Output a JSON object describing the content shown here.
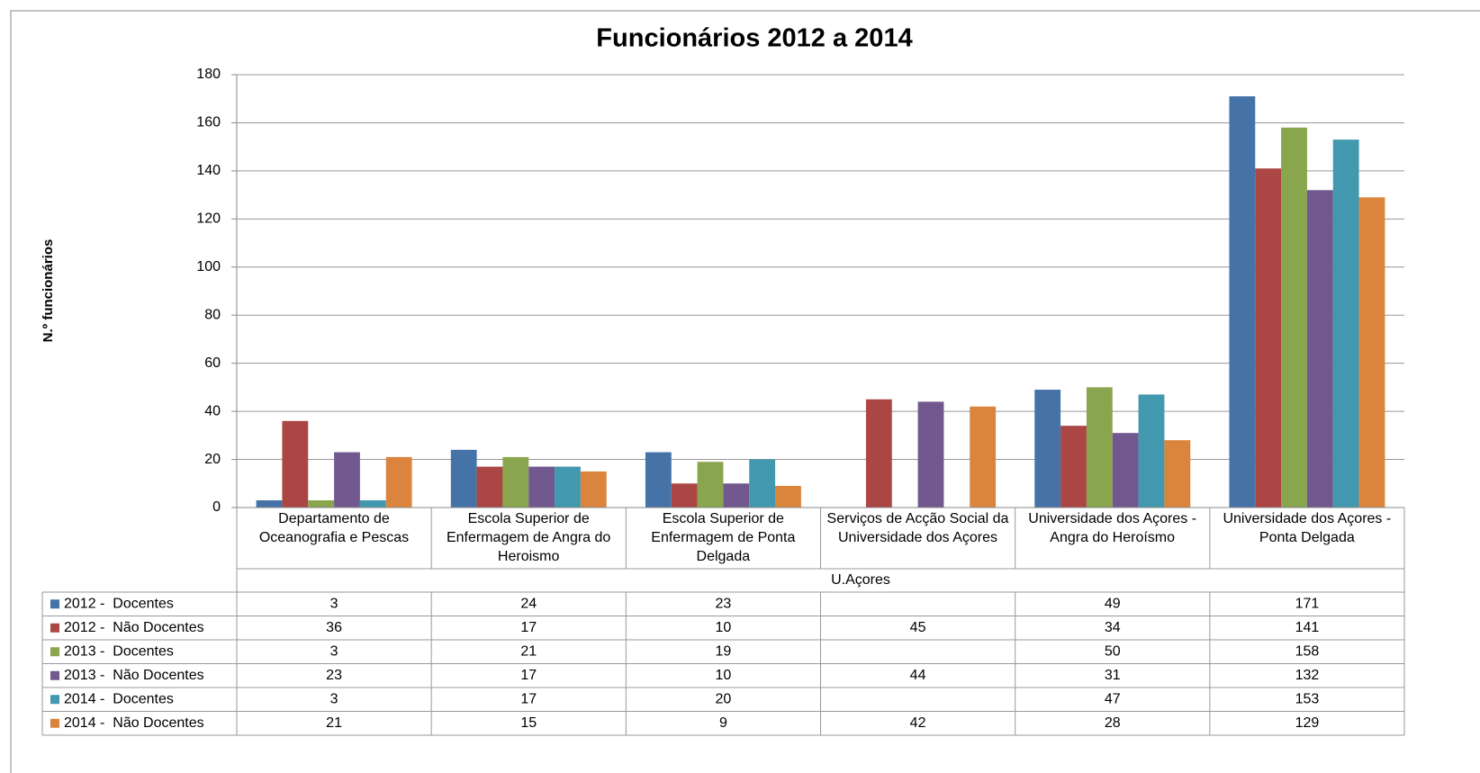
{
  "chart_data": {
    "type": "bar",
    "title": "Funcionários 2012 a 2014",
    "y_label": "N.º funcionários",
    "x_label": "U.Açores",
    "categories": [
      "Departamento de Oceanografia e Pescas",
      "Escola Superior de Enfermagem de Angra do Heroismo",
      "Escola Superior de Enfermagem de Ponta Delgada",
      "Serviços de Acção Social da Universidade dos Açores",
      "Universidade dos Açores - Angra do Heroísmo",
      "Universidade dos Açores - Ponta Delgada"
    ],
    "series": [
      {
        "name": "2012 -  Docentes",
        "color": "#4572a7",
        "values": [
          3,
          24,
          23,
          null,
          49,
          171
        ]
      },
      {
        "name": "2012 -  Não Docentes",
        "color": "#aa4643",
        "values": [
          36,
          17,
          10,
          45,
          34,
          141
        ]
      },
      {
        "name": "2013 -  Docentes",
        "color": "#89a54e",
        "values": [
          3,
          21,
          19,
          null,
          50,
          158
        ]
      },
      {
        "name": "2013 -  Não Docentes",
        "color": "#71588f",
        "values": [
          23,
          17,
          10,
          44,
          31,
          132
        ]
      },
      {
        "name": "2014 -  Docentes",
        "color": "#4198af",
        "values": [
          3,
          17,
          20,
          null,
          47,
          153
        ]
      },
      {
        "name": "2014 -  Não Docentes",
        "color": "#db843d",
        "values": [
          21,
          15,
          9,
          42,
          28,
          129
        ]
      }
    ],
    "ylim": [
      0,
      180
    ],
    "yticks": [
      0,
      20,
      40,
      60,
      80,
      100,
      120,
      140,
      160,
      180
    ],
    "grid": true
  }
}
